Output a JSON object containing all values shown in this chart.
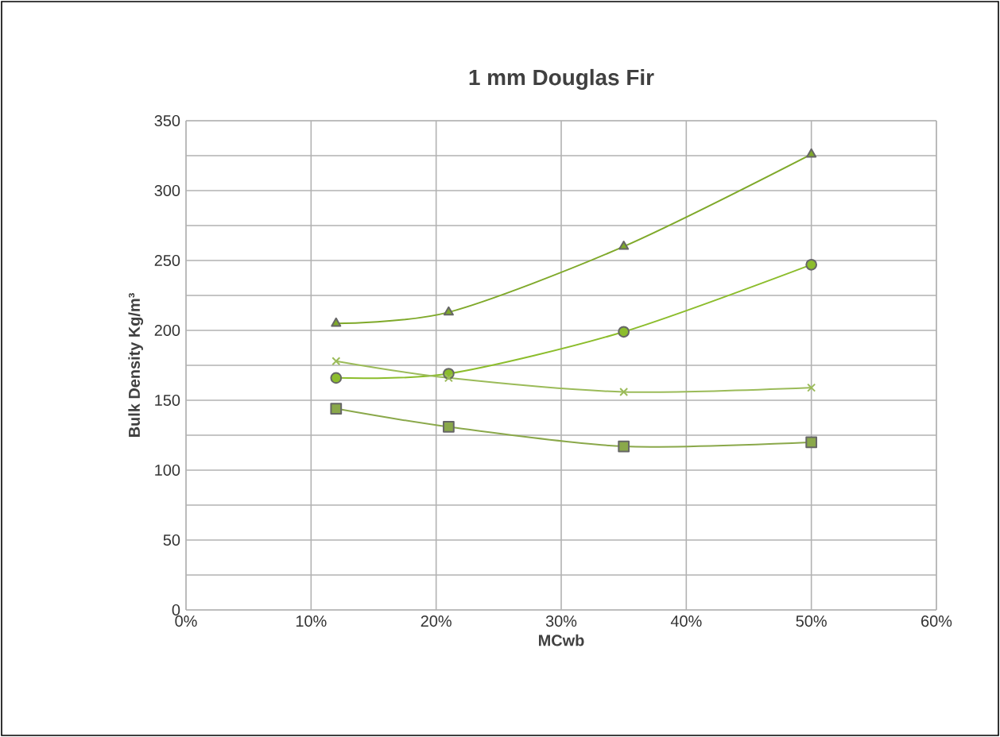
{
  "chart_data": {
    "type": "line",
    "title": "1 mm Douglas Fir",
    "xlabel": "MCwb",
    "ylabel": "Bulk Density Kg/m³",
    "x": [
      0.12,
      0.21,
      0.35,
      0.5
    ],
    "series": [
      {
        "color": "#7fa92a",
        "marker": "triangle",
        "values": [
          205,
          213,
          260,
          326
        ]
      },
      {
        "color": "#8cbd2c",
        "marker": "circle",
        "values": [
          166,
          169,
          199,
          247
        ]
      },
      {
        "color": "#9bbb59",
        "marker": "cross",
        "values": [
          178,
          166,
          156,
          159
        ]
      },
      {
        "color": "#8aa84a",
        "marker": "square",
        "values": [
          144,
          131,
          117,
          120
        ]
      }
    ],
    "xlim": [
      0,
      0.6
    ],
    "ylim": [
      0,
      350
    ],
    "xticks": [
      {
        "value": 0,
        "label": "0%"
      },
      {
        "value": 0.1,
        "label": "10%"
      },
      {
        "value": 0.2,
        "label": "20%"
      },
      {
        "value": 0.3,
        "label": "30%"
      },
      {
        "value": 0.4,
        "label": "40%"
      },
      {
        "value": 0.5,
        "label": "50%"
      },
      {
        "value": 0.6,
        "label": "60%"
      }
    ],
    "yticks": [
      0,
      50,
      100,
      150,
      200,
      250,
      300,
      350
    ],
    "grid": true,
    "line_style": "solid"
  }
}
